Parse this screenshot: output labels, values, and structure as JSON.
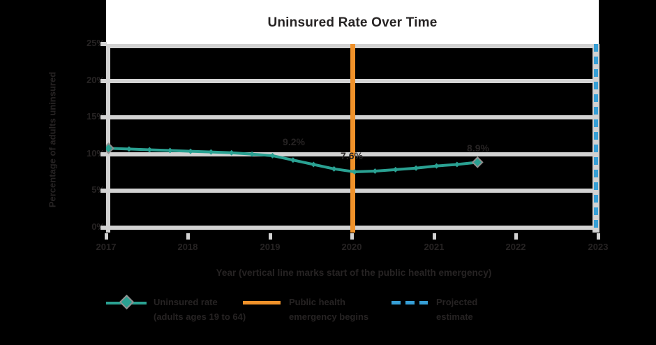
{
  "title": "Uninsured Rate Over Time",
  "y_axis": {
    "title": "Percentage of adults uninsured",
    "ticks": [
      "25%",
      "20%",
      "15%",
      "10%",
      "5%",
      "0%"
    ]
  },
  "x_axis": {
    "title": "Year (vertical line marks start of the public health emergency)",
    "ticks": [
      "2017",
      "2018",
      "2019",
      "2020",
      "2021",
      "2022",
      "2023"
    ]
  },
  "annotations": {
    "mid_label": "9.2%",
    "dip_label": "7.6%",
    "end_label": "8.9%"
  },
  "legend": [
    {
      "line1": "Uninsured rate",
      "line2": "(adults ages 19 to 64)"
    },
    {
      "line1": "Public health",
      "line2": "emergency begins"
    },
    {
      "line1": "Projected",
      "line2": "estimate"
    }
  ],
  "colors": {
    "series_teal": "#2aa192",
    "event_orange": "#f0922a",
    "event_blue": "#369fd6",
    "gridline_gray": "#d2d2d2",
    "text_dark": "#262323",
    "title_band_white": "#ffffff",
    "marker_edge_gray": "#8f8f8f"
  },
  "chart_data": {
    "type": "line",
    "title": "Uninsured Rate Over Time",
    "xlabel": "Year (vertical line marks start of the public health emergency)",
    "ylabel": "Percentage of adults uninsured",
    "series": [
      {
        "name": "Uninsured rate (adults ages 19 to 64)",
        "color": "#2aa192",
        "x": [
          2017.0,
          2017.25,
          2017.5,
          2017.75,
          2018.0,
          2018.25,
          2018.5,
          2018.75,
          2019.0,
          2019.25,
          2019.5,
          2019.75,
          2020.0,
          2020.25,
          2020.5,
          2020.75,
          2021.0,
          2021.25,
          2021.5
        ],
        "values": [
          10.8,
          10.7,
          10.6,
          10.5,
          10.4,
          10.3,
          10.2,
          10.0,
          9.8,
          9.2,
          8.6,
          8.0,
          7.6,
          7.7,
          7.9,
          8.1,
          8.4,
          8.6,
          8.9
        ]
      }
    ],
    "point_labels": [
      {
        "x": 2019.25,
        "value": 9.2,
        "text": "9.2%"
      },
      {
        "x": 2020.0,
        "value": 7.6,
        "text": "7.6%"
      },
      {
        "x": 2021.5,
        "value": 8.9,
        "text": "8.9%"
      }
    ],
    "event_lines": [
      {
        "x": 2020,
        "label": "Public health emergency begins",
        "color": "#f0922a",
        "style": "solid"
      },
      {
        "x": 2023,
        "label": "Projected estimate",
        "color": "#369fd6",
        "style": "dashed"
      }
    ],
    "xlim": [
      2017,
      2023
    ],
    "ylim": [
      0,
      25
    ],
    "y_tick_labels": [
      "0%",
      "5%",
      "10%",
      "15%",
      "20%",
      "25%"
    ],
    "x_tick_labels": [
      "2017",
      "2018",
      "2019",
      "2020",
      "2021",
      "2022",
      "2023"
    ],
    "grid": "horizontal",
    "legend_position": "bottom"
  }
}
